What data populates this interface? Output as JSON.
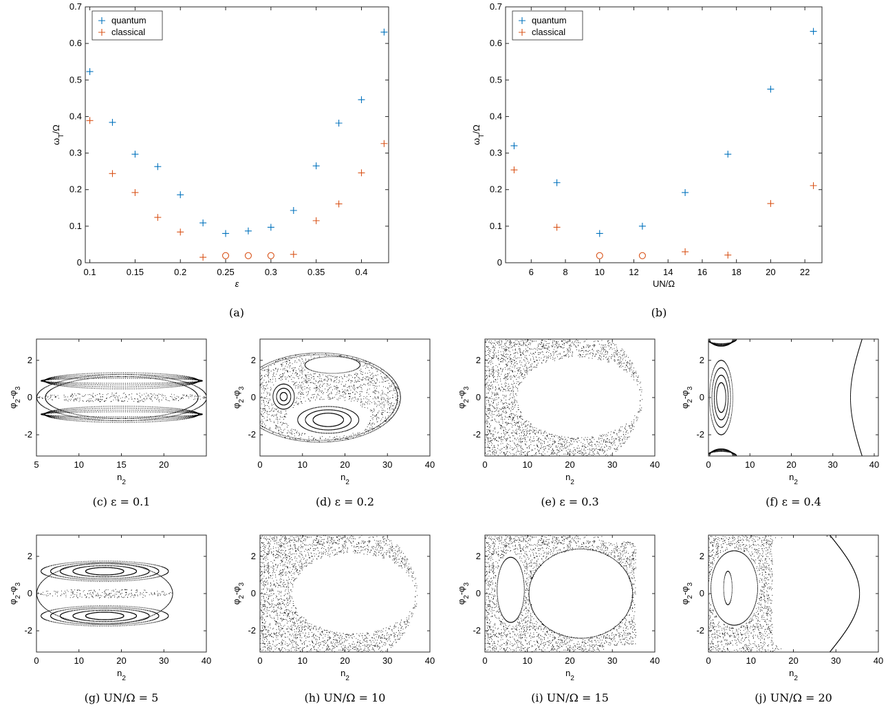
{
  "chart_data": [
    {
      "id": "a",
      "type": "scatter",
      "caption": "(a)",
      "xlabel": "ε",
      "ylabel": "ω_T/Ω",
      "xlim": [
        0.095,
        0.43
      ],
      "ylim": [
        0,
        0.7
      ],
      "xticks": [
        0.1,
        0.15,
        0.2,
        0.25,
        0.3,
        0.35,
        0.4
      ],
      "xticklabels": [
        "0.1",
        "0.15",
        "0.2",
        "0.25",
        "0.3",
        "0.35",
        "0.4"
      ],
      "yticks": [
        0,
        0.1,
        0.2,
        0.3,
        0.4,
        0.5,
        0.6,
        0.7
      ],
      "yticklabels": [
        "0",
        "0.1",
        "0.2",
        "0.3",
        "0.4",
        "0.5",
        "0.6",
        "0.7"
      ],
      "legend": {
        "position": "top-left",
        "entries": [
          "quantum",
          "classical"
        ]
      },
      "series": [
        {
          "name": "quantum",
          "marker": "+",
          "color": "#0072BD",
          "x": [
            0.1,
            0.125,
            0.15,
            0.175,
            0.2,
            0.225,
            0.25,
            0.275,
            0.3,
            0.325,
            0.35,
            0.375,
            0.4,
            0.425
          ],
          "y": [
            0.523,
            0.384,
            0.297,
            0.263,
            0.186,
            0.109,
            0.08,
            0.087,
            0.097,
            0.143,
            0.265,
            0.382,
            0.446,
            0.631
          ]
        },
        {
          "name": "classical",
          "marker": "+",
          "color": "#D95319",
          "x": [
            0.1,
            0.125,
            0.15,
            0.175,
            0.2,
            0.225,
            0.325,
            0.35,
            0.375,
            0.4,
            0.425
          ],
          "y": [
            0.389,
            0.244,
            0.192,
            0.124,
            0.084,
            0.015,
            0.023,
            0.115,
            0.161,
            0.246,
            0.326
          ]
        },
        {
          "name": "",
          "marker": "o",
          "color": "#D95319",
          "x": [
            0.25,
            0.275,
            0.3
          ],
          "y": [
            0.01,
            0.01,
            0.01
          ]
        }
      ]
    },
    {
      "id": "b",
      "type": "scatter",
      "caption": "(b)",
      "xlabel": "UN/Ω",
      "ylabel": "ω_T/Ω",
      "xlim": [
        4.5,
        23
      ],
      "ylim": [
        0,
        0.7
      ],
      "xticks": [
        6,
        8,
        10,
        12,
        14,
        16,
        18,
        20,
        22
      ],
      "xticklabels": [
        "6",
        "8",
        "10",
        "12",
        "14",
        "16",
        "18",
        "20",
        "22"
      ],
      "yticks": [
        0,
        0.1,
        0.2,
        0.3,
        0.4,
        0.5,
        0.6,
        0.7
      ],
      "yticklabels": [
        "0",
        "0.1",
        "0.2",
        "0.3",
        "0.4",
        "0.5",
        "0.6",
        "0.7"
      ],
      "legend": {
        "position": "top-left",
        "entries": [
          "quantum",
          "classical"
        ]
      },
      "series": [
        {
          "name": "quantum",
          "marker": "+",
          "color": "#0072BD",
          "x": [
            5,
            7.5,
            10,
            12.5,
            15,
            17.5,
            20,
            22.5
          ],
          "y": [
            0.32,
            0.219,
            0.08,
            0.1,
            0.192,
            0.297,
            0.475,
            0.633
          ]
        },
        {
          "name": "classical",
          "marker": "+",
          "color": "#D95319",
          "x": [
            5,
            7.5,
            15,
            17.5,
            20,
            22.5
          ],
          "y": [
            0.254,
            0.097,
            0.03,
            0.021,
            0.162,
            0.211
          ]
        },
        {
          "name": "",
          "marker": "o",
          "color": "#D95319",
          "x": [
            10,
            12.5
          ],
          "y": [
            0.01,
            0.01
          ]
        }
      ]
    }
  ],
  "poincare_panels": [
    {
      "id": "c",
      "caption": "(c) ε = 0.1",
      "xlim": [
        5,
        25
      ],
      "xticks": [
        5,
        10,
        15,
        20
      ],
      "mode": "tori-wide"
    },
    {
      "id": "d",
      "caption": "(d) ε = 0.2",
      "xlim": [
        0,
        40
      ],
      "xticks": [
        0,
        10,
        20,
        30,
        40
      ],
      "mode": "mixed"
    },
    {
      "id": "e",
      "caption": "(e) ε = 0.3",
      "xlim": [
        0,
        40
      ],
      "xticks": [
        0,
        10,
        20,
        30,
        40
      ],
      "mode": "chaos-hole"
    },
    {
      "id": "f",
      "caption": "(f) ε = 0.4",
      "xlim": [
        0,
        41
      ],
      "xticks": [
        0,
        10,
        20,
        30,
        40
      ],
      "mode": "edge-tori"
    },
    {
      "id": "g",
      "caption": "(g) UN/Ω = 5",
      "xlim": [
        0,
        40
      ],
      "xticks": [
        0,
        10,
        20,
        30,
        40
      ],
      "mode": "tori-two"
    },
    {
      "id": "h",
      "caption": "(h) UN/Ω = 10",
      "xlim": [
        0,
        40
      ],
      "xticks": [
        0,
        10,
        20,
        30,
        40
      ],
      "mode": "chaos-hole"
    },
    {
      "id": "i",
      "caption": "(i) UN/Ω = 15",
      "xlim": [
        0,
        40
      ],
      "xticks": [
        0,
        10,
        20,
        30,
        40
      ],
      "mode": "chaos-islands"
    },
    {
      "id": "j",
      "caption": "(j) UN/Ω = 20",
      "xlim": [
        0,
        40
      ],
      "xticks": [
        0,
        10,
        20,
        30,
        40
      ],
      "mode": "chaos-islands2"
    }
  ],
  "poincare_axes": {
    "xlabel": "n_2",
    "ylabel": "φ_2-φ_3",
    "ylim": [
      -3.1416,
      3.1416
    ],
    "yticks": [
      -2,
      0,
      2
    ],
    "yticklabels": [
      "-2",
      "0",
      "2"
    ]
  }
}
